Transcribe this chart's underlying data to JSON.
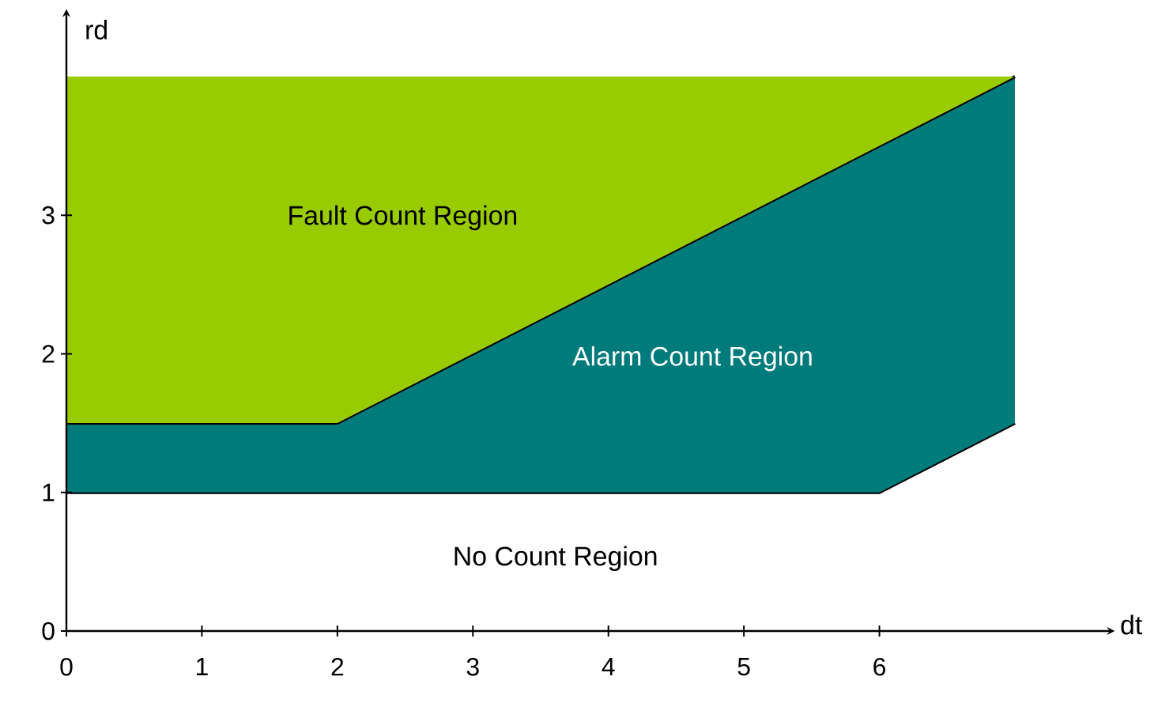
{
  "chart_data": {
    "type": "area",
    "stacked": true,
    "xlabel": "dt",
    "ylabel": "rd",
    "xlim": [
      0,
      7.7
    ],
    "ylim": [
      0,
      4.45
    ],
    "xticks": [
      0,
      1,
      2,
      3,
      4,
      5,
      6
    ],
    "yticks": [
      0,
      1,
      2,
      3
    ],
    "series": [
      {
        "name": "No Count Region",
        "color": "#ffffff",
        "x": [
          0,
          2,
          6,
          7
        ],
        "values": [
          1,
          1,
          1,
          1.5
        ]
      },
      {
        "name": "Alarm Count Region",
        "color": "#007b7b",
        "x": [
          0,
          2,
          6,
          7
        ],
        "values": [
          0.5,
          0.5,
          2.5,
          2.5
        ]
      },
      {
        "name": "Fault Count Region",
        "color": "#99cc00",
        "x": [
          0,
          2,
          6,
          7
        ],
        "values": [
          2.5,
          2.5,
          0.5,
          0
        ]
      }
    ]
  }
}
